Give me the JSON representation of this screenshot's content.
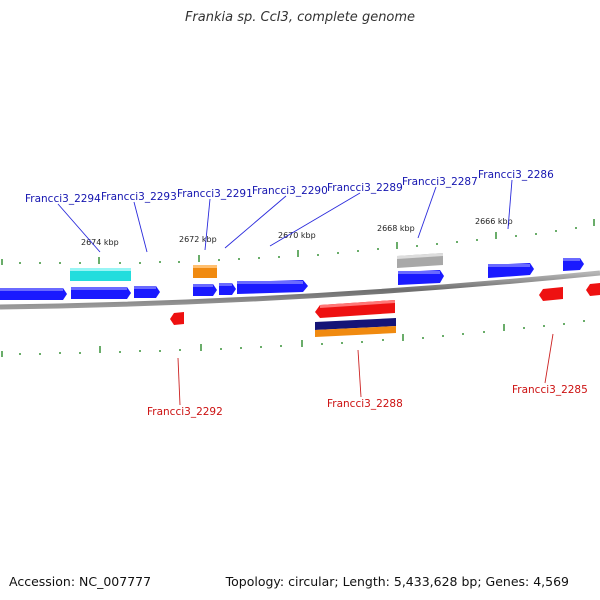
{
  "title": "Frankia sp. CcI3, complete genome",
  "footer": {
    "accession": "Accession: NC_007777",
    "summary": "Topology: circular; Length: 5,433,628 bp; Genes: 4,569"
  },
  "colors": {
    "forward_gene": "#1a1aff",
    "reverse_gene": "#ee1111",
    "forward_label": "#1515b0",
    "reverse_label": "#cc1111",
    "backbone": "#8a8a8a",
    "tick": "#2a8a2a",
    "leader_forward": "#2a2adc",
    "leader_reverse": "#cc2222"
  },
  "kbp_markers": [
    {
      "label": "2674 kbp"
    },
    {
      "label": "2672 kbp"
    },
    {
      "label": "2670 kbp"
    },
    {
      "label": "2668 kbp"
    },
    {
      "label": "2666 kbp"
    }
  ],
  "forward_gene_labels": [
    {
      "id": "g2294",
      "label": "Francci3_2294"
    },
    {
      "id": "g2293",
      "label": "Francci3_2293"
    },
    {
      "id": "g2291",
      "label": "Francci3_2291"
    },
    {
      "id": "g2290",
      "label": "Francci3_2290"
    },
    {
      "id": "g2289",
      "label": "Francci3_2289"
    },
    {
      "id": "g2287",
      "label": "Francci3_2287"
    },
    {
      "id": "g2286",
      "label": "Francci3_2286"
    }
  ],
  "reverse_gene_labels": [
    {
      "id": "g2292",
      "label": "Francci3_2292"
    },
    {
      "id": "g2288",
      "label": "Francci3_2288"
    },
    {
      "id": "g2285",
      "label": "Francci3_2285"
    }
  ]
}
